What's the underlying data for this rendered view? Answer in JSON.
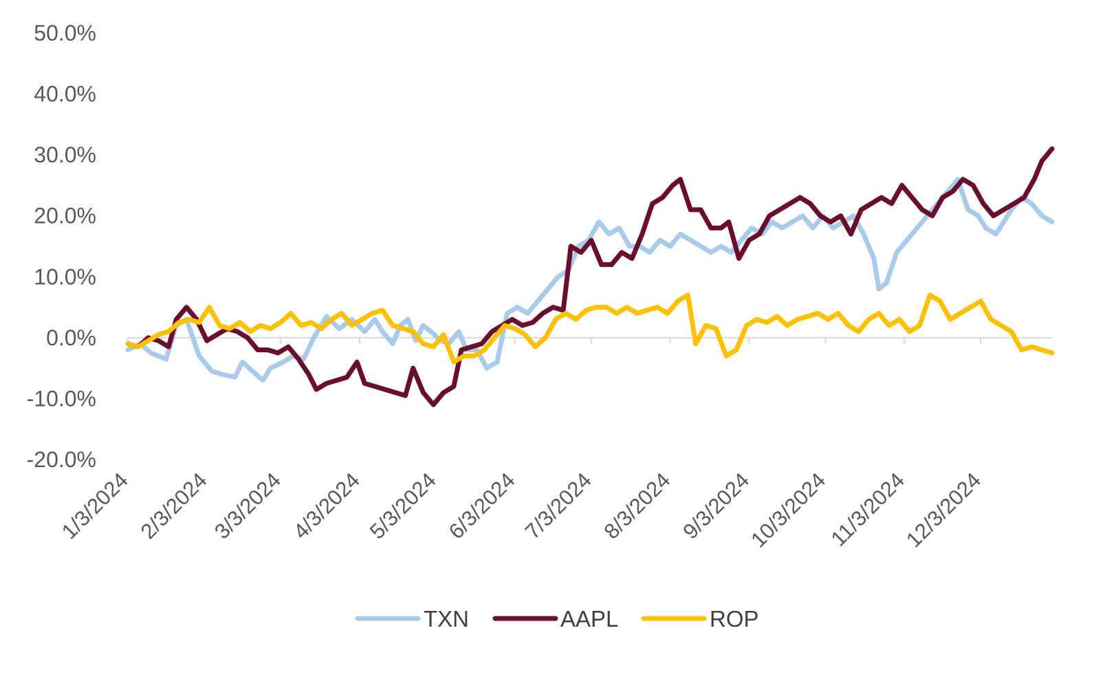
{
  "chart_data": {
    "type": "line",
    "title": "",
    "xlabel": "",
    "ylabel": "",
    "ylim": [
      -20,
      50
    ],
    "ytick_step": 10,
    "ytick_labels": [
      "-20.0%",
      "-10.0%",
      "0.0%",
      "10.0%",
      "20.0%",
      "30.0%",
      "40.0%",
      "50.0%"
    ],
    "x_start": "2024-01-03",
    "x_end": "2024-12-31",
    "xtick_labels": [
      "1/3/2024",
      "2/3/2024",
      "3/3/2024",
      "4/3/2024",
      "5/3/2024",
      "6/3/2024",
      "7/3/2024",
      "8/3/2024",
      "9/3/2024",
      "10/3/2024",
      "11/3/2024",
      "12/3/2024"
    ],
    "xtick_dates": [
      "2024-01-03",
      "2024-02-03",
      "2024-03-03",
      "2024-04-03",
      "2024-05-03",
      "2024-06-03",
      "2024-07-03",
      "2024-08-03",
      "2024-09-03",
      "2024-10-03",
      "2024-11-03",
      "2024-12-03"
    ],
    "legend_position": "bottom",
    "series": [
      {
        "name": "TXN",
        "color": "#a9cbeb",
        "points": [
          [
            "2024-01-03",
            -2
          ],
          [
            "2024-01-08",
            -1
          ],
          [
            "2024-01-12",
            -2.5
          ],
          [
            "2024-01-18",
            -3.5
          ],
          [
            "2024-01-22",
            2
          ],
          [
            "2024-01-26",
            3
          ],
          [
            "2024-01-31",
            -3
          ],
          [
            "2024-02-05",
            -5.5
          ],
          [
            "2024-02-09",
            -6
          ],
          [
            "2024-02-14",
            -6.5
          ],
          [
            "2024-02-17",
            -4
          ],
          [
            "2024-02-21",
            -5.5
          ],
          [
            "2024-02-25",
            -7
          ],
          [
            "2024-02-28",
            -5
          ],
          [
            "2024-03-04",
            -4
          ],
          [
            "2024-03-08",
            -3
          ],
          [
            "2024-03-12",
            -3.5
          ],
          [
            "2024-03-16",
            0
          ],
          [
            "2024-03-21",
            3.5
          ],
          [
            "2024-03-26",
            1.5
          ],
          [
            "2024-03-31",
            3
          ],
          [
            "2024-04-05",
            1
          ],
          [
            "2024-04-09",
            3
          ],
          [
            "2024-04-12",
            1
          ],
          [
            "2024-04-16",
            -1
          ],
          [
            "2024-04-19",
            2
          ],
          [
            "2024-04-22",
            3
          ],
          [
            "2024-04-25",
            -0.5
          ],
          [
            "2024-04-28",
            2
          ],
          [
            "2024-05-01",
            1
          ],
          [
            "2024-05-05",
            -0.5
          ],
          [
            "2024-05-08",
            -1
          ],
          [
            "2024-05-12",
            1
          ],
          [
            "2024-05-15",
            -2
          ],
          [
            "2024-05-19",
            -2
          ],
          [
            "2024-05-23",
            -5
          ],
          [
            "2024-05-27",
            -4
          ],
          [
            "2024-05-31",
            4
          ],
          [
            "2024-06-04",
            5
          ],
          [
            "2024-06-08",
            4
          ],
          [
            "2024-06-12",
            6
          ],
          [
            "2024-06-16",
            8
          ],
          [
            "2024-06-20",
            10
          ],
          [
            "2024-06-24",
            11
          ],
          [
            "2024-06-28",
            15
          ],
          [
            "2024-07-02",
            16
          ],
          [
            "2024-07-06",
            19
          ],
          [
            "2024-07-10",
            17
          ],
          [
            "2024-07-14",
            18
          ],
          [
            "2024-07-18",
            15
          ],
          [
            "2024-07-22",
            15
          ],
          [
            "2024-07-26",
            14
          ],
          [
            "2024-07-30",
            16
          ],
          [
            "2024-08-03",
            15
          ],
          [
            "2024-08-07",
            17
          ],
          [
            "2024-08-11",
            16
          ],
          [
            "2024-08-15",
            15
          ],
          [
            "2024-08-19",
            14
          ],
          [
            "2024-08-23",
            15
          ],
          [
            "2024-08-27",
            14
          ],
          [
            "2024-08-31",
            16
          ],
          [
            "2024-09-04",
            18
          ],
          [
            "2024-09-08",
            17
          ],
          [
            "2024-09-12",
            19
          ],
          [
            "2024-09-16",
            18
          ],
          [
            "2024-09-20",
            19
          ],
          [
            "2024-09-24",
            20
          ],
          [
            "2024-09-28",
            18
          ],
          [
            "2024-10-02",
            20
          ],
          [
            "2024-10-06",
            18
          ],
          [
            "2024-10-10",
            19
          ],
          [
            "2024-10-14",
            20
          ],
          [
            "2024-10-18",
            17
          ],
          [
            "2024-10-22",
            13
          ],
          [
            "2024-10-24",
            8
          ],
          [
            "2024-10-27",
            9
          ],
          [
            "2024-10-31",
            14
          ],
          [
            "2024-11-04",
            16
          ],
          [
            "2024-11-08",
            18
          ],
          [
            "2024-11-12",
            20
          ],
          [
            "2024-11-16",
            22
          ],
          [
            "2024-11-20",
            24
          ],
          [
            "2024-11-24",
            26
          ],
          [
            "2024-11-28",
            21
          ],
          [
            "2024-12-02",
            20
          ],
          [
            "2024-12-05",
            18
          ],
          [
            "2024-12-09",
            17
          ],
          [
            "2024-12-12",
            19
          ],
          [
            "2024-12-15",
            21
          ],
          [
            "2024-12-19",
            23
          ],
          [
            "2024-12-23",
            22
          ],
          [
            "2024-12-27",
            20
          ],
          [
            "2024-12-31",
            19
          ]
        ]
      },
      {
        "name": "AAPL",
        "color": "#6b0e2e",
        "points": [
          [
            "2024-01-03",
            -1
          ],
          [
            "2024-01-07",
            -1.5
          ],
          [
            "2024-01-11",
            0
          ],
          [
            "2024-01-15",
            -0.5
          ],
          [
            "2024-01-19",
            -1.5
          ],
          [
            "2024-01-22",
            3
          ],
          [
            "2024-01-26",
            5
          ],
          [
            "2024-01-30",
            3
          ],
          [
            "2024-02-03",
            -0.5
          ],
          [
            "2024-02-07",
            0.5
          ],
          [
            "2024-02-11",
            1.5
          ],
          [
            "2024-02-15",
            1
          ],
          [
            "2024-02-19",
            0
          ],
          [
            "2024-02-23",
            -2
          ],
          [
            "2024-02-27",
            -2
          ],
          [
            "2024-03-02",
            -2.5
          ],
          [
            "2024-03-06",
            -1.5
          ],
          [
            "2024-03-10",
            -3.5
          ],
          [
            "2024-03-14",
            -6
          ],
          [
            "2024-03-17",
            -8.5
          ],
          [
            "2024-03-21",
            -7.5
          ],
          [
            "2024-03-25",
            -7
          ],
          [
            "2024-03-29",
            -6.5
          ],
          [
            "2024-04-02",
            -4
          ],
          [
            "2024-04-05",
            -7.5
          ],
          [
            "2024-04-09",
            -8
          ],
          [
            "2024-04-13",
            -8.5
          ],
          [
            "2024-04-17",
            -9
          ],
          [
            "2024-04-21",
            -9.5
          ],
          [
            "2024-04-24",
            -5
          ],
          [
            "2024-04-28",
            -9
          ],
          [
            "2024-05-02",
            -11
          ],
          [
            "2024-05-06",
            -9
          ],
          [
            "2024-05-10",
            -8
          ],
          [
            "2024-05-13",
            -2
          ],
          [
            "2024-05-17",
            -1.5
          ],
          [
            "2024-05-21",
            -1
          ],
          [
            "2024-05-25",
            1
          ],
          [
            "2024-05-29",
            2
          ],
          [
            "2024-06-02",
            3
          ],
          [
            "2024-06-06",
            2
          ],
          [
            "2024-06-10",
            2.5
          ],
          [
            "2024-06-14",
            4
          ],
          [
            "2024-06-18",
            5
          ],
          [
            "2024-06-22",
            4.5
          ],
          [
            "2024-06-25",
            15
          ],
          [
            "2024-06-29",
            14
          ],
          [
            "2024-07-03",
            16
          ],
          [
            "2024-07-07",
            12
          ],
          [
            "2024-07-11",
            12
          ],
          [
            "2024-07-15",
            14
          ],
          [
            "2024-07-19",
            13
          ],
          [
            "2024-07-23",
            17
          ],
          [
            "2024-07-27",
            22
          ],
          [
            "2024-07-31",
            23
          ],
          [
            "2024-08-04",
            25
          ],
          [
            "2024-08-07",
            26
          ],
          [
            "2024-08-11",
            21
          ],
          [
            "2024-08-15",
            21
          ],
          [
            "2024-08-19",
            18
          ],
          [
            "2024-08-23",
            18
          ],
          [
            "2024-08-26",
            19
          ],
          [
            "2024-08-30",
            13
          ],
          [
            "2024-09-03",
            16
          ],
          [
            "2024-09-07",
            17
          ],
          [
            "2024-09-11",
            20
          ],
          [
            "2024-09-15",
            21
          ],
          [
            "2024-09-19",
            22
          ],
          [
            "2024-09-23",
            23
          ],
          [
            "2024-09-27",
            22
          ],
          [
            "2024-10-01",
            20
          ],
          [
            "2024-10-05",
            19
          ],
          [
            "2024-10-09",
            20
          ],
          [
            "2024-10-13",
            17
          ],
          [
            "2024-10-17",
            21
          ],
          [
            "2024-10-21",
            22
          ],
          [
            "2024-10-25",
            23
          ],
          [
            "2024-10-29",
            22
          ],
          [
            "2024-11-02",
            25
          ],
          [
            "2024-11-06",
            23
          ],
          [
            "2024-11-10",
            21
          ],
          [
            "2024-11-14",
            20
          ],
          [
            "2024-11-18",
            23
          ],
          [
            "2024-11-22",
            24
          ],
          [
            "2024-11-26",
            26
          ],
          [
            "2024-11-30",
            25
          ],
          [
            "2024-12-04",
            22
          ],
          [
            "2024-12-08",
            20
          ],
          [
            "2024-12-12",
            21
          ],
          [
            "2024-12-16",
            22
          ],
          [
            "2024-12-20",
            23
          ],
          [
            "2024-12-24",
            26
          ],
          [
            "2024-12-27",
            29
          ],
          [
            "2024-12-31",
            31
          ]
        ]
      },
      {
        "name": "ROP",
        "color": "#ffc000",
        "points": [
          [
            "2024-01-03",
            -1
          ],
          [
            "2024-01-07",
            -1.5
          ],
          [
            "2024-01-11",
            -0.5
          ],
          [
            "2024-01-15",
            0.5
          ],
          [
            "2024-01-19",
            1
          ],
          [
            "2024-01-23",
            2.5
          ],
          [
            "2024-01-27",
            3
          ],
          [
            "2024-01-31",
            2.5
          ],
          [
            "2024-02-04",
            5
          ],
          [
            "2024-02-08",
            2
          ],
          [
            "2024-02-12",
            1.5
          ],
          [
            "2024-02-16",
            2.5
          ],
          [
            "2024-02-20",
            1
          ],
          [
            "2024-02-24",
            2
          ],
          [
            "2024-02-28",
            1.5
          ],
          [
            "2024-03-03",
            2.5
          ],
          [
            "2024-03-07",
            4
          ],
          [
            "2024-03-11",
            2
          ],
          [
            "2024-03-15",
            2.5
          ],
          [
            "2024-03-19",
            1.5
          ],
          [
            "2024-03-23",
            3
          ],
          [
            "2024-03-27",
            4
          ],
          [
            "2024-03-31",
            2
          ],
          [
            "2024-04-04",
            3
          ],
          [
            "2024-04-08",
            4
          ],
          [
            "2024-04-12",
            4.5
          ],
          [
            "2024-04-16",
            2
          ],
          [
            "2024-04-20",
            1.5
          ],
          [
            "2024-04-24",
            1
          ],
          [
            "2024-04-28",
            -1
          ],
          [
            "2024-05-02",
            -1.5
          ],
          [
            "2024-05-06",
            0.5
          ],
          [
            "2024-05-10",
            -4
          ],
          [
            "2024-05-14",
            -3
          ],
          [
            "2024-05-18",
            -3
          ],
          [
            "2024-05-22",
            -2
          ],
          [
            "2024-05-26",
            0
          ],
          [
            "2024-05-30",
            2
          ],
          [
            "2024-06-03",
            1.5
          ],
          [
            "2024-06-07",
            0.5
          ],
          [
            "2024-06-11",
            -1.5
          ],
          [
            "2024-06-15",
            0
          ],
          [
            "2024-06-19",
            3
          ],
          [
            "2024-06-23",
            4
          ],
          [
            "2024-06-27",
            3
          ],
          [
            "2024-07-01",
            4.5
          ],
          [
            "2024-07-05",
            5
          ],
          [
            "2024-07-09",
            5
          ],
          [
            "2024-07-13",
            4
          ],
          [
            "2024-07-17",
            5
          ],
          [
            "2024-07-21",
            4
          ],
          [
            "2024-07-25",
            4.5
          ],
          [
            "2024-07-29",
            5
          ],
          [
            "2024-08-02",
            4
          ],
          [
            "2024-08-06",
            6
          ],
          [
            "2024-08-10",
            7
          ],
          [
            "2024-08-13",
            -1
          ],
          [
            "2024-08-17",
            2
          ],
          [
            "2024-08-21",
            1.5
          ],
          [
            "2024-08-25",
            -3
          ],
          [
            "2024-08-29",
            -2
          ],
          [
            "2024-09-02",
            2
          ],
          [
            "2024-09-06",
            3
          ],
          [
            "2024-09-10",
            2.5
          ],
          [
            "2024-09-14",
            3.5
          ],
          [
            "2024-09-18",
            2
          ],
          [
            "2024-09-22",
            3
          ],
          [
            "2024-09-26",
            3.5
          ],
          [
            "2024-09-30",
            4
          ],
          [
            "2024-10-04",
            3
          ],
          [
            "2024-10-08",
            4
          ],
          [
            "2024-10-12",
            2
          ],
          [
            "2024-10-16",
            1
          ],
          [
            "2024-10-20",
            3
          ],
          [
            "2024-10-24",
            4
          ],
          [
            "2024-10-28",
            2
          ],
          [
            "2024-11-01",
            3
          ],
          [
            "2024-11-05",
            1
          ],
          [
            "2024-11-09",
            2
          ],
          [
            "2024-11-13",
            7
          ],
          [
            "2024-11-17",
            6
          ],
          [
            "2024-11-21",
            3
          ],
          [
            "2024-11-25",
            4
          ],
          [
            "2024-11-29",
            5
          ],
          [
            "2024-12-03",
            6
          ],
          [
            "2024-12-07",
            3
          ],
          [
            "2024-12-11",
            2
          ],
          [
            "2024-12-15",
            1
          ],
          [
            "2024-12-19",
            -2
          ],
          [
            "2024-12-23",
            -1.5
          ],
          [
            "2024-12-27",
            -2
          ],
          [
            "2024-12-31",
            -2.5
          ]
        ]
      }
    ]
  }
}
